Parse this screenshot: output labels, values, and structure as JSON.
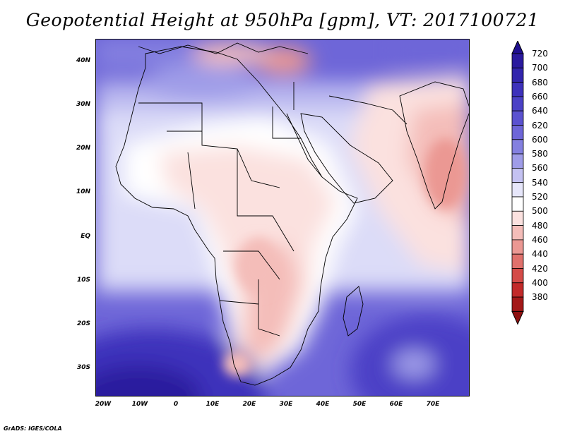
{
  "title": "Geopotential Height at 950hPa [gpm], VT: 2017100721",
  "credit": "GrADS: IGES/COLA",
  "map": {
    "lat_labels": [
      "40N",
      "30N",
      "20N",
      "10N",
      "EQ",
      "10S",
      "20S",
      "30S"
    ],
    "lon_labels": [
      "20W",
      "10W",
      "0",
      "10E",
      "20E",
      "30E",
      "40E",
      "50E",
      "60E",
      "70E"
    ]
  },
  "colorbar": {
    "labels": [
      "720",
      "700",
      "680",
      "660",
      "640",
      "620",
      "600",
      "580",
      "560",
      "540",
      "520",
      "500",
      "480",
      "460",
      "440",
      "420",
      "400",
      "380"
    ],
    "colors": [
      "#2a1a9e",
      "#3225ad",
      "#3d31bb",
      "#4b41c6",
      "#5b52d0",
      "#6e66d8",
      "#8480e0",
      "#9f9ce8",
      "#c4c2f2",
      "#e6e6fa",
      "#ffffff",
      "#fbe1df",
      "#f4bdb9",
      "#eb9893",
      "#e0716c",
      "#d44b48",
      "#c22a2a",
      "#a31818"
    ]
  }
}
